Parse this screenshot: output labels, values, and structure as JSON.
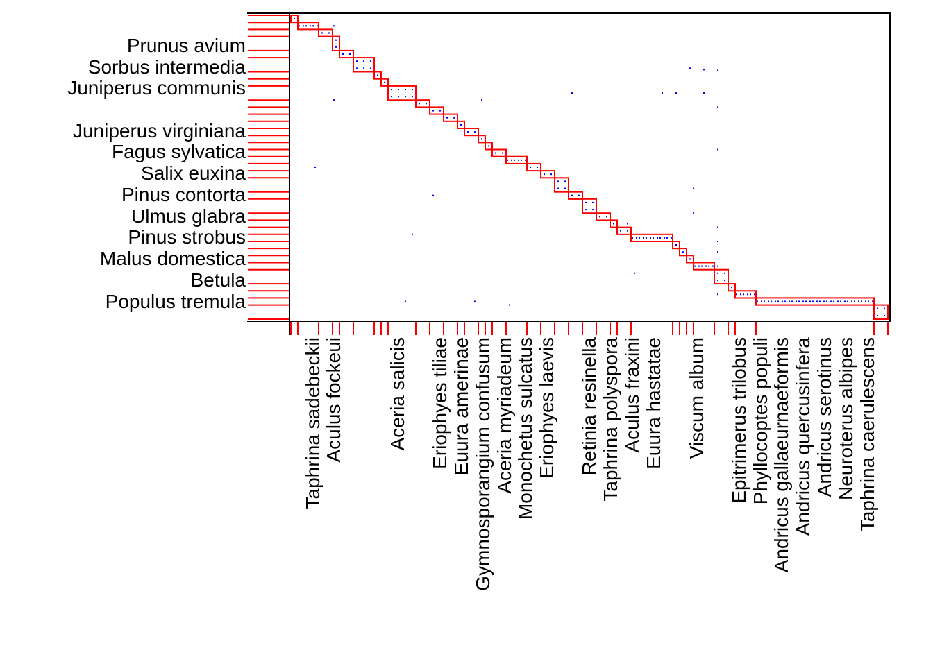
{
  "chart_data": {
    "type": "heatmap",
    "title": "",
    "xlabel": "",
    "ylabel": "",
    "y_labels": [
      "Prunus avium",
      "Sorbus intermedia",
      "Juniperus communis",
      "Juniperus virginiana",
      "Fagus sylvatica",
      "Salix euxina",
      "Pinus contorta",
      "Ulmus glabra",
      "Pinus strobus",
      "Malus domestica",
      "Betula",
      "Populus tremula"
    ],
    "x_labels": [
      "Taphrina sadebeckii",
      "Aculus fockeui",
      "Aceria salicis",
      "Eriophyes tiliae",
      "Euura amerinae",
      "Gymnosporangium confusum",
      "Aceria myriadeum",
      "Monochetus sulcatus",
      "Eriophyes laevis",
      "Retinia resinella",
      "Taphrina polyspora",
      "Aculus fraxini",
      "Euura hastatae",
      "Viscum album",
      "Epitrimerus trilobus",
      "Phyllocoptes populi",
      "Andricus gallaeurnaeformis",
      "Andricus quercusinfera",
      "Andricus serotinus",
      "Neuroterus albipes",
      "Taphrina caerulescens"
    ],
    "n_rows": 43,
    "n_cols": 86,
    "modules": [
      {
        "c0": 0,
        "c1": 1,
        "r0": 0,
        "r1": 0
      },
      {
        "c0": 1,
        "c1": 4,
        "r0": 1,
        "r1": 1
      },
      {
        "c0": 4,
        "c1": 6,
        "r0": 2,
        "r1": 2
      },
      {
        "c0": 6,
        "c1": 7,
        "r0": 3,
        "r1": 4
      },
      {
        "c0": 7,
        "c1": 9,
        "r0": 5,
        "r1": 5
      },
      {
        "c0": 9,
        "c1": 12,
        "r0": 6,
        "r1": 7
      },
      {
        "c0": 12,
        "c1": 13,
        "r0": 8,
        "r1": 8
      },
      {
        "c0": 13,
        "c1": 14,
        "r0": 9,
        "r1": 9
      },
      {
        "c0": 14,
        "c1": 18,
        "r0": 10,
        "r1": 11
      },
      {
        "c0": 18,
        "c1": 20,
        "r0": 12,
        "r1": 12
      },
      {
        "c0": 20,
        "c1": 22,
        "r0": 13,
        "r1": 13
      },
      {
        "c0": 22,
        "c1": 24,
        "r0": 14,
        "r1": 14
      },
      {
        "c0": 24,
        "c1": 25,
        "r0": 15,
        "r1": 15
      },
      {
        "c0": 25,
        "c1": 27,
        "r0": 16,
        "r1": 16
      },
      {
        "c0": 27,
        "c1": 28,
        "r0": 17,
        "r1": 17
      },
      {
        "c0": 28,
        "c1": 29,
        "r0": 18,
        "r1": 18
      },
      {
        "c0": 29,
        "c1": 31,
        "r0": 19,
        "r1": 19
      },
      {
        "c0": 31,
        "c1": 34,
        "r0": 20,
        "r1": 20
      },
      {
        "c0": 34,
        "c1": 36,
        "r0": 21,
        "r1": 21
      },
      {
        "c0": 36,
        "c1": 38,
        "r0": 22,
        "r1": 22
      },
      {
        "c0": 38,
        "c1": 40,
        "r0": 23,
        "r1": 24
      },
      {
        "c0": 40,
        "c1": 42,
        "r0": 25,
        "r1": 25
      },
      {
        "c0": 42,
        "c1": 44,
        "r0": 26,
        "r1": 27
      },
      {
        "c0": 44,
        "c1": 46,
        "r0": 28,
        "r1": 28
      },
      {
        "c0": 46,
        "c1": 47,
        "r0": 29,
        "r1": 29
      },
      {
        "c0": 47,
        "c1": 49,
        "r0": 30,
        "r1": 30
      },
      {
        "c0": 49,
        "c1": 55,
        "r0": 31,
        "r1": 31
      },
      {
        "c0": 55,
        "c1": 56,
        "r0": 32,
        "r1": 32
      },
      {
        "c0": 56,
        "c1": 57,
        "r0": 33,
        "r1": 33
      },
      {
        "c0": 57,
        "c1": 58,
        "r0": 34,
        "r1": 34
      },
      {
        "c0": 58,
        "c1": 61,
        "r0": 35,
        "r1": 35
      },
      {
        "c0": 61,
        "c1": 63,
        "r0": 36,
        "r1": 37
      },
      {
        "c0": 63,
        "c1": 64,
        "r0": 38,
        "r1": 38
      },
      {
        "c0": 64,
        "c1": 67,
        "r0": 39,
        "r1": 39
      },
      {
        "c0": 67,
        "c1": 84,
        "r0": 40,
        "r1": 40
      },
      {
        "c0": 84,
        "c1": 86,
        "r0": 41,
        "r1": 42
      }
    ],
    "outliers": [
      [
        5.7,
        1.0
      ],
      [
        5.7,
        11.5
      ],
      [
        3.0,
        21.0
      ],
      [
        20.0,
        25.0
      ],
      [
        27.0,
        11.5
      ],
      [
        40.0,
        10.5
      ],
      [
        48.0,
        29.0
      ],
      [
        49.0,
        36.0
      ],
      [
        53.0,
        10.5
      ],
      [
        55.0,
        10.5
      ],
      [
        57.0,
        7.0
      ],
      [
        57.5,
        27.5
      ],
      [
        57.5,
        24.0
      ],
      [
        59.0,
        7.2
      ],
      [
        59.0,
        10.5
      ],
      [
        61.0,
        7.3
      ],
      [
        61.0,
        12.5
      ],
      [
        61.0,
        18.5
      ],
      [
        61.0,
        29.5
      ],
      [
        61.0,
        31.5
      ],
      [
        61.0,
        33.0
      ],
      [
        61.0,
        35.0
      ],
      [
        61.0,
        39.0
      ],
      [
        16.0,
        40.0
      ],
      [
        26.0,
        40.0
      ],
      [
        31.0,
        40.5
      ],
      [
        17.0,
        30.5
      ]
    ],
    "cell_color": "#0000ff",
    "module_color": "#ff0000",
    "frame_color": "#000000"
  }
}
